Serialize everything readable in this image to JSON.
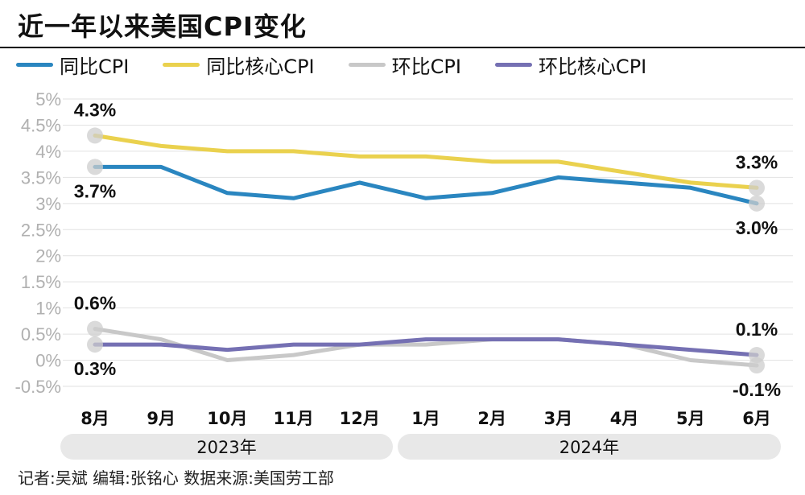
{
  "title": "近一年以来美国CPI变化",
  "credit": "记者:吴斌   编辑:张铭心   数据来源:美国劳工部",
  "years": [
    "2023年",
    "2024年"
  ],
  "chart_data": {
    "type": "line",
    "categories": [
      "8月",
      "9月",
      "10月",
      "11月",
      "12月",
      "1月",
      "2月",
      "3月",
      "4月",
      "5月",
      "6月"
    ],
    "ylim": [
      -0.5,
      5
    ],
    "yticks": [
      {
        "v": 5,
        "label": "5%"
      },
      {
        "v": 4.5,
        "label": "4.5%"
      },
      {
        "v": 4,
        "label": "4%"
      },
      {
        "v": 3.5,
        "label": "3.5%"
      },
      {
        "v": 3,
        "label": "3%"
      },
      {
        "v": 2.5,
        "label": "2.5%"
      },
      {
        "v": 2,
        "label": "2%"
      },
      {
        "v": 1.5,
        "label": "1.5%"
      },
      {
        "v": 1,
        "label": "1%"
      },
      {
        "v": 0.5,
        "label": "0.5%"
      },
      {
        "v": 0,
        "label": "0%"
      },
      {
        "v": -0.5,
        "label": "-0.5%"
      }
    ],
    "grid": true,
    "legend_placement": "top",
    "series": [
      {
        "name": "同比CPI",
        "color": "#2a86c0",
        "values": [
          3.7,
          3.7,
          3.2,
          3.1,
          3.4,
          3.1,
          3.2,
          3.5,
          3.4,
          3.3,
          3.0
        ]
      },
      {
        "name": "同比核心CPI",
        "color": "#ead14e",
        "values": [
          4.3,
          4.1,
          4.0,
          4.0,
          3.9,
          3.9,
          3.8,
          3.8,
          3.6,
          3.4,
          3.3
        ]
      },
      {
        "name": "环比CPI",
        "color": "#c8c8c8",
        "values": [
          0.6,
          0.4,
          0.0,
          0.1,
          0.3,
          0.3,
          0.4,
          0.4,
          0.3,
          0.0,
          -0.1
        ]
      },
      {
        "name": "环比核心CPI",
        "color": "#7570b3",
        "values": [
          0.3,
          0.3,
          0.2,
          0.3,
          0.3,
          0.4,
          0.4,
          0.4,
          0.3,
          0.2,
          0.1
        ]
      }
    ],
    "annotations": [
      {
        "series": 1,
        "index": 0,
        "label": "4.3%",
        "pos": "above"
      },
      {
        "series": 0,
        "index": 0,
        "label": "3.7%",
        "pos": "below"
      },
      {
        "series": 1,
        "index": 10,
        "label": "3.3%",
        "pos": "above"
      },
      {
        "series": 0,
        "index": 10,
        "label": "3.0%",
        "pos": "below"
      },
      {
        "series": 2,
        "index": 0,
        "label": "0.6%",
        "pos": "above"
      },
      {
        "series": 3,
        "index": 0,
        "label": "0.3%",
        "pos": "below"
      },
      {
        "series": 3,
        "index": 10,
        "label": "0.1%",
        "pos": "above"
      },
      {
        "series": 2,
        "index": 10,
        "label": "-0.1%",
        "pos": "below"
      }
    ]
  }
}
